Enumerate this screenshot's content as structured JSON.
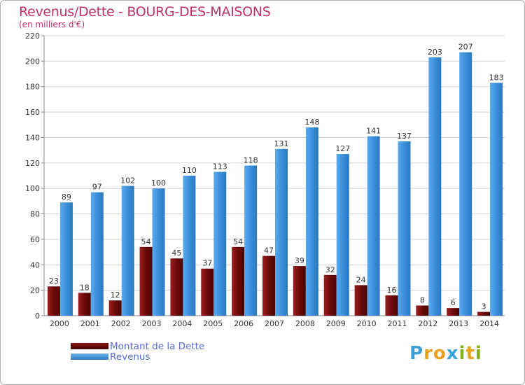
{
  "title": "Revenus/Dette - BOURG-DES-MAISONS",
  "subtitle": "(en milliers d'€)",
  "colors": {
    "dette": "#6b0a0a",
    "revenus": "#3a8fd8",
    "text": "#c0306a",
    "legend_text": "#5a6ad8",
    "grid": "#d0d0d0"
  },
  "logo": {
    "text": "Proxiti",
    "letters": [
      {
        "ch": "P",
        "color": "#3aa0d8"
      },
      {
        "ch": "r",
        "color": "#e8a020"
      },
      {
        "ch": "o",
        "color": "#e8a020"
      },
      {
        "ch": "x",
        "color": "#3aa0d8"
      },
      {
        "ch": "i",
        "color": "#80b020"
      },
      {
        "ch": "t",
        "color": "#e8a020"
      },
      {
        "ch": "i",
        "color": "#80b020"
      }
    ]
  },
  "chart_data": {
    "type": "bar",
    "title": "Revenus/Dette - BOURG-DES-MAISONS",
    "subtitle": "(en milliers d'€)",
    "categories": [
      "2000",
      "2001",
      "2002",
      "2003",
      "2004",
      "2005",
      "2006",
      "2007",
      "2008",
      "2009",
      "2010",
      "2011",
      "2012",
      "2013",
      "2014"
    ],
    "series": [
      {
        "name": "Montant de la Dette",
        "values": [
          23,
          18,
          12,
          54,
          45,
          37,
          54,
          47,
          39,
          32,
          24,
          16,
          8,
          6,
          3
        ]
      },
      {
        "name": "Revenus",
        "values": [
          89,
          97,
          102,
          100,
          110,
          113,
          118,
          131,
          148,
          127,
          141,
          137,
          203,
          207,
          183
        ]
      }
    ],
    "ylim": [
      0,
      220
    ],
    "yticks": [
      0,
      20,
      40,
      60,
      80,
      100,
      120,
      140,
      160,
      180,
      200,
      220
    ],
    "grid": true,
    "legend": "bottom-left"
  }
}
